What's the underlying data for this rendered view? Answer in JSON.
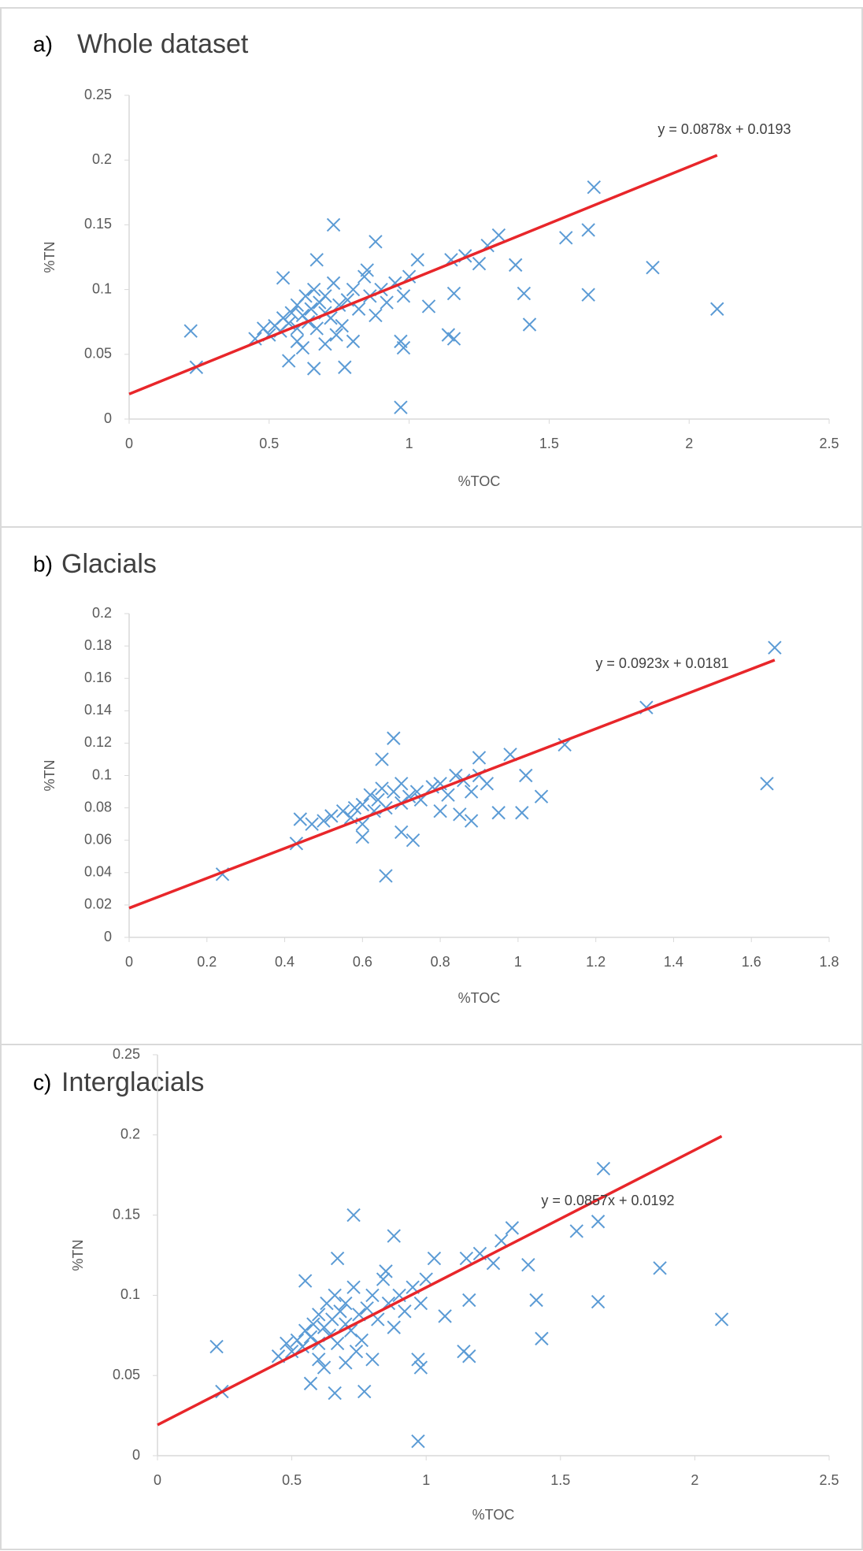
{
  "chart_data": [
    {
      "type": "scatter",
      "panel": "a)",
      "title": "Whole dataset",
      "x_label": "%TOC",
      "y_label": "%TN",
      "color": "#5b9bd5",
      "xlim": [
        0,
        2.5
      ],
      "xticks": [
        0,
        0.5,
        1,
        1.5,
        2,
        2.5
      ],
      "ylim": [
        0,
        0.25
      ],
      "yticks": [
        0,
        0.05,
        0.1,
        0.15,
        0.2,
        0.25
      ],
      "x": [
        0.22,
        0.24,
        0.97,
        0.57,
        0.66,
        0.77,
        0.73,
        0.88,
        1.16,
        1.14,
        1.16,
        1.2,
        1.25,
        1.32,
        1.38,
        1.41,
        1.43,
        1.56,
        1.64,
        1.64,
        1.66,
        1.87,
        2.1,
        1.03,
        0.97,
        0.98,
        1.07,
        1.15,
        1.28,
        0.55,
        0.67,
        0.45,
        0.48,
        0.5,
        0.52,
        0.54,
        0.55,
        0.57,
        0.58,
        0.6,
        0.6,
        0.62,
        0.63,
        0.64,
        0.65,
        0.66,
        0.67,
        0.68,
        0.7,
        0.7,
        0.72,
        0.73,
        0.75,
        0.76,
        0.78,
        0.8,
        0.8,
        0.82,
        0.84,
        0.86,
        0.88,
        0.9,
        0.92,
        0.95,
        0.98,
        1.0,
        0.6,
        0.7,
        0.62,
        0.85,
        0.74
      ],
      "values": [
        0.068,
        0.04,
        0.009,
        0.045,
        0.039,
        0.04,
        0.15,
        0.137,
        0.062,
        0.065,
        0.097,
        0.126,
        0.12,
        0.142,
        0.119,
        0.097,
        0.073,
        0.14,
        0.146,
        0.096,
        0.179,
        0.117,
        0.085,
        0.123,
        0.06,
        0.055,
        0.087,
        0.123,
        0.134,
        0.109,
        0.123,
        0.062,
        0.07,
        0.065,
        0.072,
        0.068,
        0.078,
        0.074,
        0.082,
        0.07,
        0.088,
        0.08,
        0.095,
        0.075,
        0.085,
        0.1,
        0.07,
        0.09,
        0.082,
        0.095,
        0.078,
        0.105,
        0.088,
        0.072,
        0.092,
        0.1,
        0.06,
        0.085,
        0.11,
        0.095,
        0.08,
        0.1,
        0.09,
        0.105,
        0.095,
        0.11,
        0.06,
        0.058,
        0.055,
        0.115,
        0.065
      ],
      "trendline": {
        "slope": 0.0878,
        "intercept": 0.0193,
        "label": "y = 0.0878x + 0.0193",
        "color": "#e8262a"
      }
    },
    {
      "type": "scatter",
      "panel": "b)",
      "title": "Glacials",
      "x_label": "%TOC",
      "y_label": "%TN",
      "color": "#5b9bd5",
      "xlim": [
        0,
        1.8
      ],
      "xticks": [
        0,
        0.2,
        0.4,
        0.6,
        0.8,
        1,
        1.2,
        1.4,
        1.6,
        1.8
      ],
      "ylim": [
        0,
        0.2
      ],
      "yticks": [
        0,
        0.02,
        0.04,
        0.06,
        0.08,
        0.1,
        0.12,
        0.14,
        0.16,
        0.18,
        0.2
      ],
      "x": [
        0.24,
        0.66,
        0.68,
        0.65,
        1.12,
        1.33,
        1.64,
        1.66,
        0.43,
        0.44,
        0.95,
        1.01,
        1.06,
        0.9,
        0.98,
        0.85,
        0.88,
        0.47,
        0.5,
        0.52,
        0.55,
        0.57,
        0.58,
        0.6,
        0.6,
        0.62,
        0.63,
        0.64,
        0.65,
        0.66,
        0.68,
        0.7,
        0.7,
        0.72,
        0.74,
        0.75,
        0.78,
        0.8,
        0.82,
        0.84,
        0.86,
        0.88,
        0.9,
        0.92,
        0.6,
        0.7,
        0.73,
        0.8,
        1.02
      ],
      "values": [
        0.039,
        0.038,
        0.123,
        0.11,
        0.119,
        0.142,
        0.095,
        0.179,
        0.058,
        0.073,
        0.077,
        0.077,
        0.087,
        0.111,
        0.113,
        0.076,
        0.072,
        0.07,
        0.072,
        0.075,
        0.078,
        0.074,
        0.08,
        0.082,
        0.07,
        0.088,
        0.078,
        0.085,
        0.092,
        0.08,
        0.09,
        0.083,
        0.095,
        0.087,
        0.09,
        0.085,
        0.093,
        0.095,
        0.088,
        0.1,
        0.097,
        0.09,
        0.1,
        0.095,
        0.062,
        0.065,
        0.06,
        0.078,
        0.1
      ],
      "trendline": {
        "slope": 0.0923,
        "intercept": 0.0181,
        "label": "y = 0.0923x + 0.0181",
        "color": "#e8262a"
      }
    },
    {
      "type": "scatter",
      "panel": "c)",
      "title": "Interglacials",
      "x_label": "%TOC",
      "y_label": "%TN",
      "color": "#5b9bd5",
      "xlim": [
        0,
        2.5
      ],
      "xticks": [
        0,
        0.5,
        1,
        1.5,
        2,
        2.5
      ],
      "ylim": [
        0,
        0.25
      ],
      "yticks": [
        0,
        0.05,
        0.1,
        0.15,
        0.2,
        0.25
      ],
      "x": [
        0.22,
        0.24,
        0.97,
        0.57,
        0.66,
        0.77,
        0.73,
        0.88,
        1.16,
        1.14,
        1.16,
        1.2,
        1.25,
        1.32,
        1.38,
        1.41,
        1.43,
        1.56,
        1.64,
        1.64,
        1.66,
        1.87,
        2.1,
        1.03,
        0.97,
        0.98,
        1.07,
        1.15,
        1.28,
        0.55,
        0.67,
        0.45,
        0.48,
        0.5,
        0.52,
        0.54,
        0.55,
        0.57,
        0.58,
        0.6,
        0.6,
        0.62,
        0.63,
        0.64,
        0.65,
        0.66,
        0.67,
        0.68,
        0.7,
        0.7,
        0.72,
        0.73,
        0.75,
        0.76,
        0.78,
        0.8,
        0.8,
        0.82,
        0.84,
        0.86,
        0.88,
        0.9,
        0.92,
        0.95,
        0.98,
        1.0,
        0.6,
        0.7,
        0.62,
        0.85,
        0.74
      ],
      "values": [
        0.068,
        0.04,
        0.009,
        0.045,
        0.039,
        0.04,
        0.15,
        0.137,
        0.062,
        0.065,
        0.097,
        0.126,
        0.12,
        0.142,
        0.119,
        0.097,
        0.073,
        0.14,
        0.146,
        0.096,
        0.179,
        0.117,
        0.085,
        0.123,
        0.06,
        0.055,
        0.087,
        0.123,
        0.134,
        0.109,
        0.123,
        0.062,
        0.07,
        0.065,
        0.072,
        0.068,
        0.078,
        0.074,
        0.082,
        0.07,
        0.088,
        0.08,
        0.095,
        0.075,
        0.085,
        0.1,
        0.07,
        0.09,
        0.082,
        0.095,
        0.078,
        0.105,
        0.088,
        0.072,
        0.092,
        0.1,
        0.06,
        0.085,
        0.11,
        0.095,
        0.08,
        0.1,
        0.09,
        0.105,
        0.095,
        0.11,
        0.06,
        0.058,
        0.055,
        0.115,
        0.065
      ],
      "trendline": {
        "slope": 0.0857,
        "intercept": 0.0192,
        "label": "y = 0.0857x + 0.0192",
        "color": "#e8262a"
      }
    }
  ]
}
